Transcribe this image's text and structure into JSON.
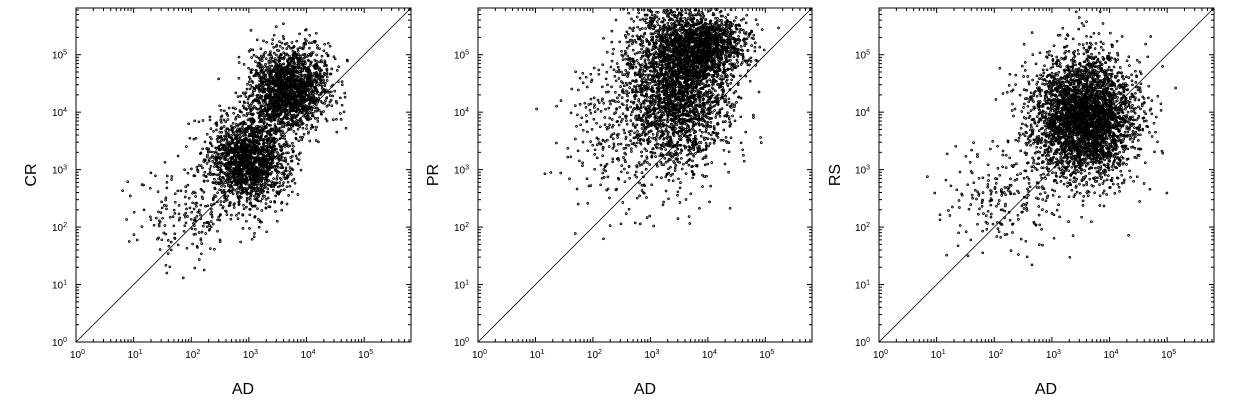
{
  "chart_data": [
    {
      "type": "scatter",
      "xlabel": "AD",
      "ylabel": "CR",
      "scale": "log",
      "xlim": [
        1,
        650000
      ],
      "ylim": [
        1,
        650000
      ],
      "x_ticks": [
        {
          "base": "10",
          "exp": "0"
        },
        {
          "base": "10",
          "exp": "1"
        },
        {
          "base": "10",
          "exp": "2"
        },
        {
          "base": "10",
          "exp": "3"
        },
        {
          "base": "10",
          "exp": "4"
        },
        {
          "base": "10",
          "exp": "5"
        }
      ],
      "y_ticks": [
        {
          "base": "10",
          "exp": "0"
        },
        {
          "base": "10",
          "exp": "1"
        },
        {
          "base": "10",
          "exp": "2"
        },
        {
          "base": "10",
          "exp": "3"
        },
        {
          "base": "10",
          "exp": "4"
        },
        {
          "base": "10",
          "exp": "5"
        }
      ],
      "reference_line": "y = x",
      "clusters": [
        {
          "x_center": 1000,
          "y_center": 1500,
          "x_sigma_log": 0.35,
          "y_sigma_log": 0.4,
          "count": 1800
        },
        {
          "x_center": 5000,
          "y_center": 25000,
          "x_sigma_log": 0.33,
          "y_sigma_log": 0.35,
          "count": 1900
        },
        {
          "x_center": 100,
          "y_center": 150,
          "x_sigma_log": 0.5,
          "y_sigma_log": 0.45,
          "count": 180
        }
      ]
    },
    {
      "type": "scatter",
      "xlabel": "AD",
      "ylabel": "PR",
      "scale": "log",
      "xlim": [
        1,
        650000
      ],
      "ylim": [
        1,
        650000
      ],
      "x_ticks": [
        {
          "base": "10",
          "exp": "0"
        },
        {
          "base": "10",
          "exp": "1"
        },
        {
          "base": "10",
          "exp": "2"
        },
        {
          "base": "10",
          "exp": "3"
        },
        {
          "base": "10",
          "exp": "4"
        },
        {
          "base": "10",
          "exp": "5"
        }
      ],
      "y_ticks": [
        {
          "base": "10",
          "exp": "0"
        },
        {
          "base": "10",
          "exp": "1"
        },
        {
          "base": "10",
          "exp": "2"
        },
        {
          "base": "10",
          "exp": "3"
        },
        {
          "base": "10",
          "exp": "4"
        },
        {
          "base": "10",
          "exp": "5"
        }
      ],
      "reference_line": "y = x",
      "clusters": [
        {
          "x_center": 3000,
          "y_center": 40000,
          "x_sigma_log": 0.45,
          "y_sigma_log": 0.75,
          "count": 3200
        },
        {
          "x_center": 10000,
          "y_center": 150000,
          "x_sigma_log": 0.35,
          "y_sigma_log": 0.25,
          "count": 900
        },
        {
          "x_center": 300,
          "y_center": 5000,
          "x_sigma_log": 0.5,
          "y_sigma_log": 0.7,
          "count": 300
        }
      ]
    },
    {
      "type": "scatter",
      "xlabel": "AD",
      "ylabel": "RS",
      "scale": "log",
      "xlim": [
        1,
        650000
      ],
      "ylim": [
        1,
        650000
      ],
      "x_ticks": [
        {
          "base": "10",
          "exp": "0"
        },
        {
          "base": "10",
          "exp": "1"
        },
        {
          "base": "10",
          "exp": "2"
        },
        {
          "base": "10",
          "exp": "3"
        },
        {
          "base": "10",
          "exp": "4"
        },
        {
          "base": "10",
          "exp": "5"
        }
      ],
      "y_ticks": [
        {
          "base": "10",
          "exp": "0"
        },
        {
          "base": "10",
          "exp": "1"
        },
        {
          "base": "10",
          "exp": "2"
        },
        {
          "base": "10",
          "exp": "3"
        },
        {
          "base": "10",
          "exp": "4"
        },
        {
          "base": "10",
          "exp": "5"
        }
      ],
      "reference_line": "y = x",
      "clusters": [
        {
          "x_center": 3500,
          "y_center": 8000,
          "x_sigma_log": 0.45,
          "y_sigma_log": 0.55,
          "count": 3600
        },
        {
          "x_center": 150,
          "y_center": 300,
          "x_sigma_log": 0.5,
          "y_sigma_log": 0.5,
          "count": 200
        }
      ]
    }
  ]
}
